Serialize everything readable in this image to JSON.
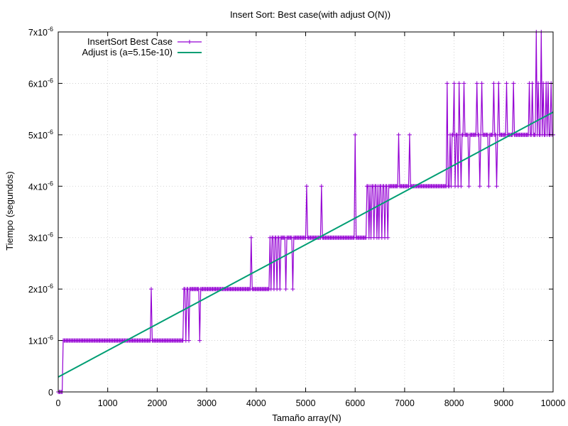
{
  "chart_data": {
    "type": "line",
    "title": "Insert Sort: Best case(with adjust O(N))",
    "xlabel": "Tamaño array(N)",
    "ylabel": "Tiempo (segundos)",
    "xlim": [
      0,
      10000
    ],
    "ylim": [
      0,
      7e-06
    ],
    "grid": true,
    "legend_position": "top-left",
    "x_ticks": [
      0,
      1000,
      2000,
      3000,
      4000,
      5000,
      6000,
      7000,
      8000,
      9000,
      10000
    ],
    "y_ticks": [
      {
        "value": 0,
        "label": "0"
      },
      {
        "value": 1e-06,
        "label": "1x10",
        "exp": "-6"
      },
      {
        "value": 2e-06,
        "label": "2x10",
        "exp": "-6"
      },
      {
        "value": 3e-06,
        "label": "3x10",
        "exp": "-6"
      },
      {
        "value": 4e-06,
        "label": "4x10",
        "exp": "-6"
      },
      {
        "value": 5e-06,
        "label": "5x10",
        "exp": "-6"
      },
      {
        "value": 6e-06,
        "label": "6x10",
        "exp": "-6"
      },
      {
        "value": 7e-06,
        "label": "7x10",
        "exp": "-6"
      }
    ],
    "series": [
      {
        "name": "InsertSort Best Case",
        "color": "#9400d3",
        "style": "linespoints",
        "marker": "plus",
        "x_start": 0,
        "x_step": 20,
        "levels": [
          {
            "from": 0,
            "to": 100,
            "y": 0
          },
          {
            "from": 100,
            "to": 2560,
            "y": 1e-06
          },
          {
            "from": 2560,
            "to": 2700,
            "y": 1.5e-06
          },
          {
            "from": 2700,
            "to": 4300,
            "y": 2e-06
          },
          {
            "from": 4300,
            "to": 4500,
            "y": 2.5e-06
          },
          {
            "from": 4500,
            "to": 6240,
            "y": 3e-06
          },
          {
            "from": 6240,
            "to": 6720,
            "y": 3.5e-06
          },
          {
            "from": 6720,
            "to": 7860,
            "y": 4e-06
          },
          {
            "from": 7860,
            "to": 8200,
            "y": 4.5e-06
          },
          {
            "from": 8200,
            "to": 10000,
            "y": 5e-06
          }
        ],
        "spikes": [
          [
            1880,
            2e-06
          ],
          [
            2540,
            2e-06
          ],
          [
            2600,
            2e-06
          ],
          [
            2660,
            2e-06
          ],
          [
            2860,
            1e-06
          ],
          [
            2880,
            2e-06
          ],
          [
            3900,
            3e-06
          ],
          [
            4280,
            3e-06
          ],
          [
            4340,
            3e-06
          ],
          [
            4400,
            3e-06
          ],
          [
            4460,
            3e-06
          ],
          [
            4520,
            3e-06
          ],
          [
            4600,
            2e-06
          ],
          [
            4740,
            2e-06
          ],
          [
            5020,
            4e-06
          ],
          [
            5320,
            4e-06
          ],
          [
            5800,
            3e-06
          ],
          [
            6000,
            5e-06
          ],
          [
            6040,
            3e-06
          ],
          [
            6260,
            4e-06
          ],
          [
            6340,
            4e-06
          ],
          [
            6400,
            4e-06
          ],
          [
            6500,
            4e-06
          ],
          [
            6560,
            4e-06
          ],
          [
            6620,
            4e-06
          ],
          [
            6700,
            4e-06
          ],
          [
            6880,
            5e-06
          ],
          [
            7100,
            5e-06
          ],
          [
            7860,
            6e-06
          ],
          [
            7900,
            4e-06
          ],
          [
            7960,
            5e-06
          ],
          [
            8000,
            6e-06
          ],
          [
            8060,
            5e-06
          ],
          [
            8100,
            6e-06
          ],
          [
            8160,
            5e-06
          ],
          [
            8200,
            6e-06
          ],
          [
            8300,
            4e-06
          ],
          [
            8460,
            6e-06
          ],
          [
            8520,
            4e-06
          ],
          [
            8560,
            6e-06
          ],
          [
            8700,
            4e-06
          ],
          [
            8800,
            6e-06
          ],
          [
            8860,
            4e-06
          ],
          [
            8900,
            6e-06
          ],
          [
            9060,
            6e-06
          ],
          [
            9200,
            6e-06
          ],
          [
            9520,
            6e-06
          ],
          [
            9580,
            6e-06
          ],
          [
            9660,
            7e-06
          ],
          [
            9700,
            6e-06
          ],
          [
            9760,
            7e-06
          ],
          [
            9800,
            6e-06
          ],
          [
            9860,
            6e-06
          ],
          [
            9900,
            6e-06
          ],
          [
            9960,
            6e-06
          ]
        ]
      },
      {
        "name": "Adjust is (a=5.15e-10)",
        "color": "#009e73",
        "style": "line",
        "x": [
          0,
          10000
        ],
        "y": [
          2.9e-07,
          5.44e-06
        ]
      }
    ]
  }
}
